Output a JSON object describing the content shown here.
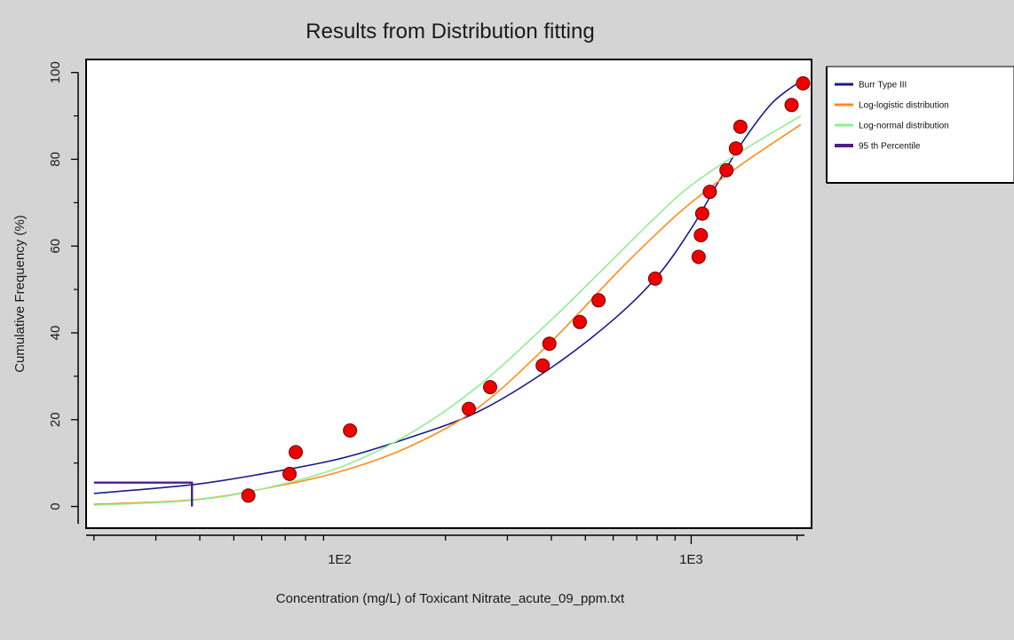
{
  "chart_data": {
    "type": "scatter",
    "title": "Results from Distribution fitting",
    "xlabel": "Concentration (mg/L) of Toxicant Nitrate_acute_09_ppm.txt",
    "ylabel": "Cumulative Frequency (%)",
    "x_scale": "log",
    "xlim": [
      19,
      2200
    ],
    "ylim": [
      -5,
      103
    ],
    "x_tick_labels": [
      {
        "value": 100,
        "label": "1E2"
      },
      {
        "value": 1000,
        "label": "1E3"
      }
    ],
    "y_ticks": [
      0,
      20,
      40,
      60,
      80,
      100
    ],
    "grid": false,
    "legend_position": "right",
    "colors": {
      "background": "#d4d4d4",
      "plot_area": "#ffffff",
      "points": "#ee0000",
      "burr": "#1a1a8c",
      "loglogistic": "#ff8c1a",
      "lognormal": "#90ee90",
      "percentile": "#4b1e8c"
    },
    "points": {
      "x": [
        55,
        72,
        75,
        107,
        233,
        268,
        378,
        395,
        482,
        545,
        790,
        1050,
        1065,
        1075,
        1130,
        1260,
        1340,
        1380,
        1930,
        2080
      ],
      "y": [
        2.5,
        7.5,
        12.5,
        17.5,
        22.5,
        27.5,
        32.5,
        37.5,
        42.5,
        47.5,
        52.5,
        57.5,
        62.5,
        67.5,
        72.5,
        77.5,
        82.5,
        87.5,
        92.5,
        97.5
      ]
    },
    "series": [
      {
        "name": "Burr Type III",
        "x": [
          20,
          38,
          60,
          100,
          160,
          250,
          400,
          600,
          800,
          1000,
          1200,
          1400,
          1700,
          2050
        ],
        "y": [
          3,
          5,
          7.5,
          11,
          16,
          22,
          32,
          43,
          53,
          64,
          75,
          84,
          93,
          98
        ]
      },
      {
        "name": "Log-logistic distribution",
        "x": [
          20,
          38,
          60,
          100,
          160,
          250,
          400,
          600,
          800,
          1000,
          1400,
          2050
        ],
        "y": [
          0.5,
          1.5,
          4,
          8,
          14,
          23,
          38,
          53,
          63,
          70,
          79,
          88
        ]
      },
      {
        "name": "Log-normal distribution",
        "x": [
          20,
          38,
          60,
          100,
          160,
          250,
          400,
          600,
          800,
          1000,
          1400,
          2050
        ],
        "y": [
          0.3,
          1.4,
          4,
          9,
          17,
          28,
          43,
          57,
          67,
          74,
          82,
          90
        ]
      },
      {
        "name": "95 th Percentile",
        "x": [
          20,
          38,
          38
        ],
        "y": [
          5.5,
          5.5,
          0
        ]
      }
    ]
  }
}
